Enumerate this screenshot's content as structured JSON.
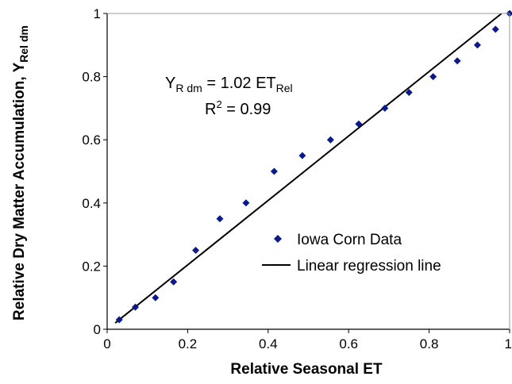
{
  "chart_data": {
    "type": "scatter",
    "xlabel": "Relative Seasonal ET",
    "ylabel": "Relative Dry Matter Accumulation, Y",
    "ylabel_sub": "Rel dm",
    "xlim": [
      0,
      1
    ],
    "ylim": [
      0,
      1
    ],
    "x_ticks": [
      0,
      0.2,
      0.4,
      0.6,
      0.8,
      1
    ],
    "y_ticks": [
      0,
      0.2,
      0.4,
      0.6,
      0.8,
      1
    ],
    "x_tick_labels": [
      "0",
      "0.2",
      "0.4",
      "0.6",
      "0.8",
      "1"
    ],
    "y_tick_labels": [
      "0",
      "0.2",
      "0.4",
      "0.6",
      "0.8",
      "1"
    ],
    "grid": false,
    "legend_position": "center-right",
    "series": [
      {
        "name": "Iowa Corn Data",
        "kind": "scatter",
        "marker": "diamond",
        "color": "#0a1a8c",
        "points": [
          [
            0.03,
            0.03
          ],
          [
            0.07,
            0.07
          ],
          [
            0.12,
            0.1
          ],
          [
            0.165,
            0.15
          ],
          [
            0.22,
            0.25
          ],
          [
            0.28,
            0.35
          ],
          [
            0.345,
            0.4
          ],
          [
            0.415,
            0.5
          ],
          [
            0.485,
            0.55
          ],
          [
            0.555,
            0.6
          ],
          [
            0.625,
            0.65
          ],
          [
            0.69,
            0.7
          ],
          [
            0.75,
            0.75
          ],
          [
            0.81,
            0.8
          ],
          [
            0.87,
            0.85
          ],
          [
            0.92,
            0.9
          ],
          [
            0.965,
            0.95
          ],
          [
            1.0,
            1.0
          ]
        ]
      },
      {
        "name": "Linear regression line",
        "kind": "line",
        "color": "#000000",
        "points": [
          [
            0.02,
            0.02
          ],
          [
            0.98,
            1.0
          ]
        ]
      }
    ],
    "annotation": {
      "eq_main": "Y",
      "eq_sub1": "R dm",
      "eq_mid": " = 1.02 ET",
      "eq_sub2": "Rel",
      "r2_main": "R",
      "r2_sup": "2",
      "r2_value": " = 0.99"
    }
  }
}
